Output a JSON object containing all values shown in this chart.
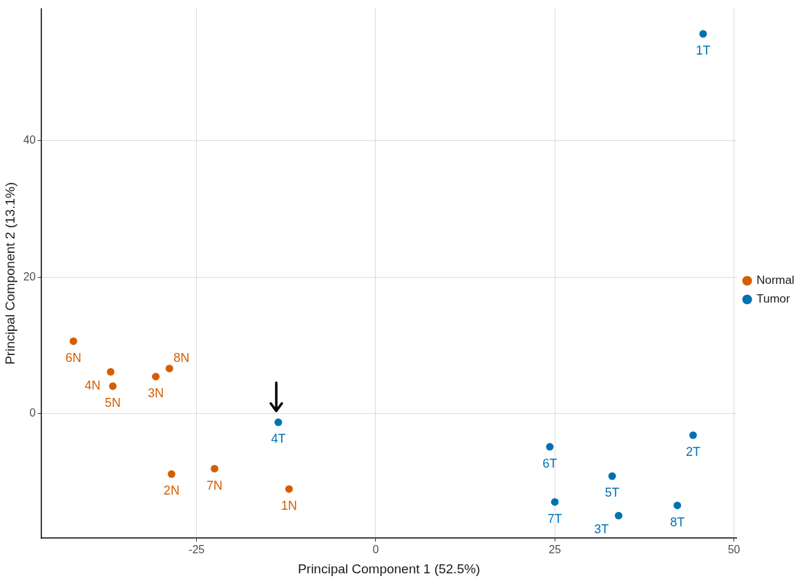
{
  "chart_data": {
    "type": "scatter",
    "xlabel": "Principal Component 1 (52.5%)",
    "ylabel": "Principal Component 2 (13.1%)",
    "xlim": [
      -46.7,
      50.4
    ],
    "ylim": [
      -18.3,
      59.4
    ],
    "xticks": [
      -25,
      0,
      25,
      50
    ],
    "yticks": [
      0,
      20,
      40
    ],
    "grid": true,
    "legend": "right",
    "marker": "circle",
    "series": [
      {
        "name": "Normal",
        "color": "#d55e00",
        "x": [
          -42.2,
          -37.0,
          -36.7,
          -30.7,
          -28.8,
          -28.5,
          -22.5,
          -12.1
        ],
        "values": [
          10.6,
          6.1,
          4.0,
          5.4,
          6.6,
          -8.9,
          -8.1,
          -11.1
        ]
      },
      {
        "name": "Tumor",
        "color": "#0072b2",
        "x": [
          45.7,
          -13.6,
          24.3,
          44.3,
          33.0,
          25.0,
          33.9,
          42.1
        ],
        "values": [
          55.7,
          -1.3,
          -4.9,
          -3.2,
          -9.2,
          -13.0,
          -15.0,
          -13.5
        ]
      }
    ],
    "annotations": [
      {
        "text": "6N",
        "x": -42.2,
        "y": 10.6
      },
      {
        "text": "4N",
        "x": -37.0,
        "y": 6.1
      },
      {
        "text": "5N",
        "x": -36.7,
        "y": 4.0
      },
      {
        "text": "3N",
        "x": -30.7,
        "y": 5.4
      },
      {
        "text": "8N",
        "x": -28.8,
        "y": 6.6
      },
      {
        "text": "2N",
        "x": -28.5,
        "y": -8.9
      },
      {
        "text": "7N",
        "x": -22.5,
        "y": -8.1
      },
      {
        "text": "1N",
        "x": -12.1,
        "y": -11.1
      },
      {
        "text": "1T",
        "x": 45.7,
        "y": 55.7
      },
      {
        "text": "4T",
        "x": -13.6,
        "y": -1.3
      },
      {
        "text": "6T",
        "x": 24.3,
        "y": -4.9
      },
      {
        "text": "2T",
        "x": 44.3,
        "y": -3.2
      },
      {
        "text": "5T",
        "x": 33.0,
        "y": -9.2
      },
      {
        "text": "7T",
        "x": 25.0,
        "y": -13.0
      },
      {
        "text": "3T",
        "x": 33.9,
        "y": -15.0
      },
      {
        "text": "8T",
        "x": 42.1,
        "y": -13.5
      }
    ]
  }
}
